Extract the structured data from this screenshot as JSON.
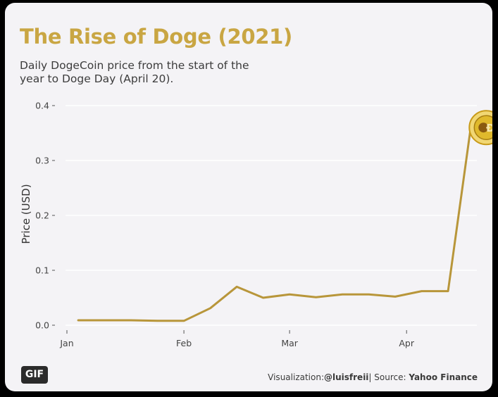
{
  "title": "The Rise of Doge (2021)",
  "subtitle": "Daily DogeCoin price from the start of the year to Doge Day (April 20).",
  "caption": {
    "prefix": "Visualization:",
    "author": "@luisfreii",
    "separator": "| Source: ",
    "source": "Yahoo Finance"
  },
  "badge": "GIF",
  "colors": {
    "line": "#b8963a",
    "title": "#c9a643",
    "background": "#f4f3f6",
    "grid": "#ffffff",
    "coin": "#e0b92c"
  },
  "chart_data": {
    "type": "line",
    "ylabel": "Price (USD)",
    "xlabel": "",
    "ylim": [
      0,
      0.4
    ],
    "yticks": [
      "0.0",
      "0.1",
      "0.2",
      "0.3",
      "0.4"
    ],
    "ytick_values": [
      0,
      0.1,
      0.2,
      0.3,
      0.4
    ],
    "xlim": [
      "2021-01-01",
      "2021-04-20"
    ],
    "xticks": [
      "Jan",
      "Feb",
      "Mar",
      "Apr"
    ],
    "xtick_dates": [
      "2021-01-01",
      "2021-02-01",
      "2021-03-01",
      "2021-04-01"
    ],
    "grid": true,
    "marker_icon": "dogecoin-coin-icon",
    "series": [
      {
        "x": [
          "2021-01-04",
          "2021-01-11",
          "2021-01-18",
          "2021-01-25",
          "2021-02-01",
          "2021-02-08",
          "2021-02-15",
          "2021-02-22",
          "2021-03-01",
          "2021-03-08",
          "2021-03-15",
          "2021-03-22",
          "2021-03-29",
          "2021-04-05",
          "2021-04-12",
          "2021-04-18"
        ],
        "y": [
          0.009,
          0.009,
          0.009,
          0.008,
          0.008,
          0.031,
          0.07,
          0.05,
          0.056,
          0.051,
          0.056,
          0.056,
          0.052,
          0.062,
          0.062,
          0.36
        ]
      }
    ]
  }
}
